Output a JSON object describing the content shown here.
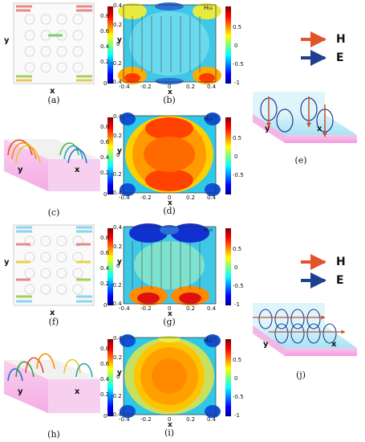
{
  "figure": {
    "panels": [
      {
        "id": "a",
        "label": "(a)",
        "axis_x": "x",
        "axis_y": "y"
      },
      {
        "id": "b",
        "label": "(b)",
        "axis_x": "x",
        "axis_y": "y",
        "corner_label": "H₁₈"
      },
      {
        "id": "c",
        "label": "(c)",
        "axis_x": "x",
        "axis_y": "y"
      },
      {
        "id": "d",
        "label": "(d)",
        "axis_x": "x",
        "axis_y": "y",
        "corner_label": "H₁₈"
      },
      {
        "id": "e",
        "label": "(e)",
        "axis_x": "x",
        "axis_y": "y"
      },
      {
        "id": "f",
        "label": "(f)",
        "axis_x": "x",
        "axis_y": "y"
      },
      {
        "id": "g",
        "label": "(g)",
        "axis_x": "x",
        "axis_y": "y",
        "corner_label": "H₂₀"
      },
      {
        "id": "h",
        "label": "(h)",
        "axis_x": "x",
        "axis_y": "y"
      },
      {
        "id": "i",
        "label": "(i)",
        "axis_x": "x",
        "axis_y": "y",
        "corner_label": "H₂₀"
      },
      {
        "id": "j",
        "label": "(j)",
        "axis_x": "x",
        "axis_y": "y"
      }
    ],
    "legend": [
      {
        "label": "H",
        "color": "#e2532b"
      },
      {
        "label": "E",
        "color": "#1f3f8f"
      }
    ],
    "colorbar_ticks_b": [
      "0.5",
      "0",
      "-0.5",
      "-1"
    ],
    "colorbar_ticks_d": [
      "0.5",
      "0",
      "-0.5"
    ],
    "colorbar_ticks_g": [
      "0.5",
      "0",
      "-0.5",
      "-1"
    ],
    "colorbar_ticks_i": [
      "0.5",
      "0",
      "-0.5",
      "-1"
    ],
    "mid_colorbar_ticks": [
      "0.8",
      "0.6",
      "0.4",
      "0.2",
      "0"
    ]
  },
  "chart_data": [
    {
      "type": "heatmap",
      "panel": "b",
      "xlabel": "x",
      "ylabel": "y",
      "xticks": [
        "-0.4",
        "-0.2",
        "0",
        "0.2",
        "0.4"
      ],
      "yticks": [
        "0.4",
        "0.2",
        "0",
        "-0.2",
        "-0.4"
      ],
      "xlim": [
        -0.4,
        0.4
      ],
      "ylim": [
        -0.4,
        0.4
      ],
      "vector_overlay": true
    },
    {
      "type": "heatmap",
      "panel": "d",
      "xlabel": "x",
      "ylabel": "y",
      "xticks": [
        "-0.4",
        "-0.2",
        "0",
        "0.2",
        "0.4"
      ],
      "yticks": [
        "0.4",
        "0.2",
        "0",
        "-0.2",
        "-0.4"
      ],
      "xlim": [
        -0.4,
        0.4
      ],
      "ylim": [
        -0.4,
        0.4
      ],
      "vector_overlay": false
    },
    {
      "type": "heatmap",
      "panel": "g",
      "xlabel": "x",
      "ylabel": "y",
      "xticks": [
        "-0.4",
        "-0.2",
        "0",
        "0.2",
        "0.4"
      ],
      "yticks": [
        "0.4",
        "0.2",
        "0",
        "-0.2",
        "-0.4"
      ],
      "xlim": [
        -0.4,
        0.4
      ],
      "ylim": [
        -0.4,
        0.4
      ],
      "vector_overlay": true
    },
    {
      "type": "heatmap",
      "panel": "i",
      "xlabel": "x",
      "ylabel": "y",
      "xticks": [
        "-0.4",
        "-0.2",
        "0",
        "0.2",
        "0.4"
      ],
      "yticks": [
        "0.4",
        "0.2",
        "0",
        "-0.2",
        "-0.4"
      ],
      "xlim": [
        -0.4,
        0.4
      ],
      "ylim": [
        -0.4,
        0.4
      ],
      "vector_overlay": false
    }
  ]
}
